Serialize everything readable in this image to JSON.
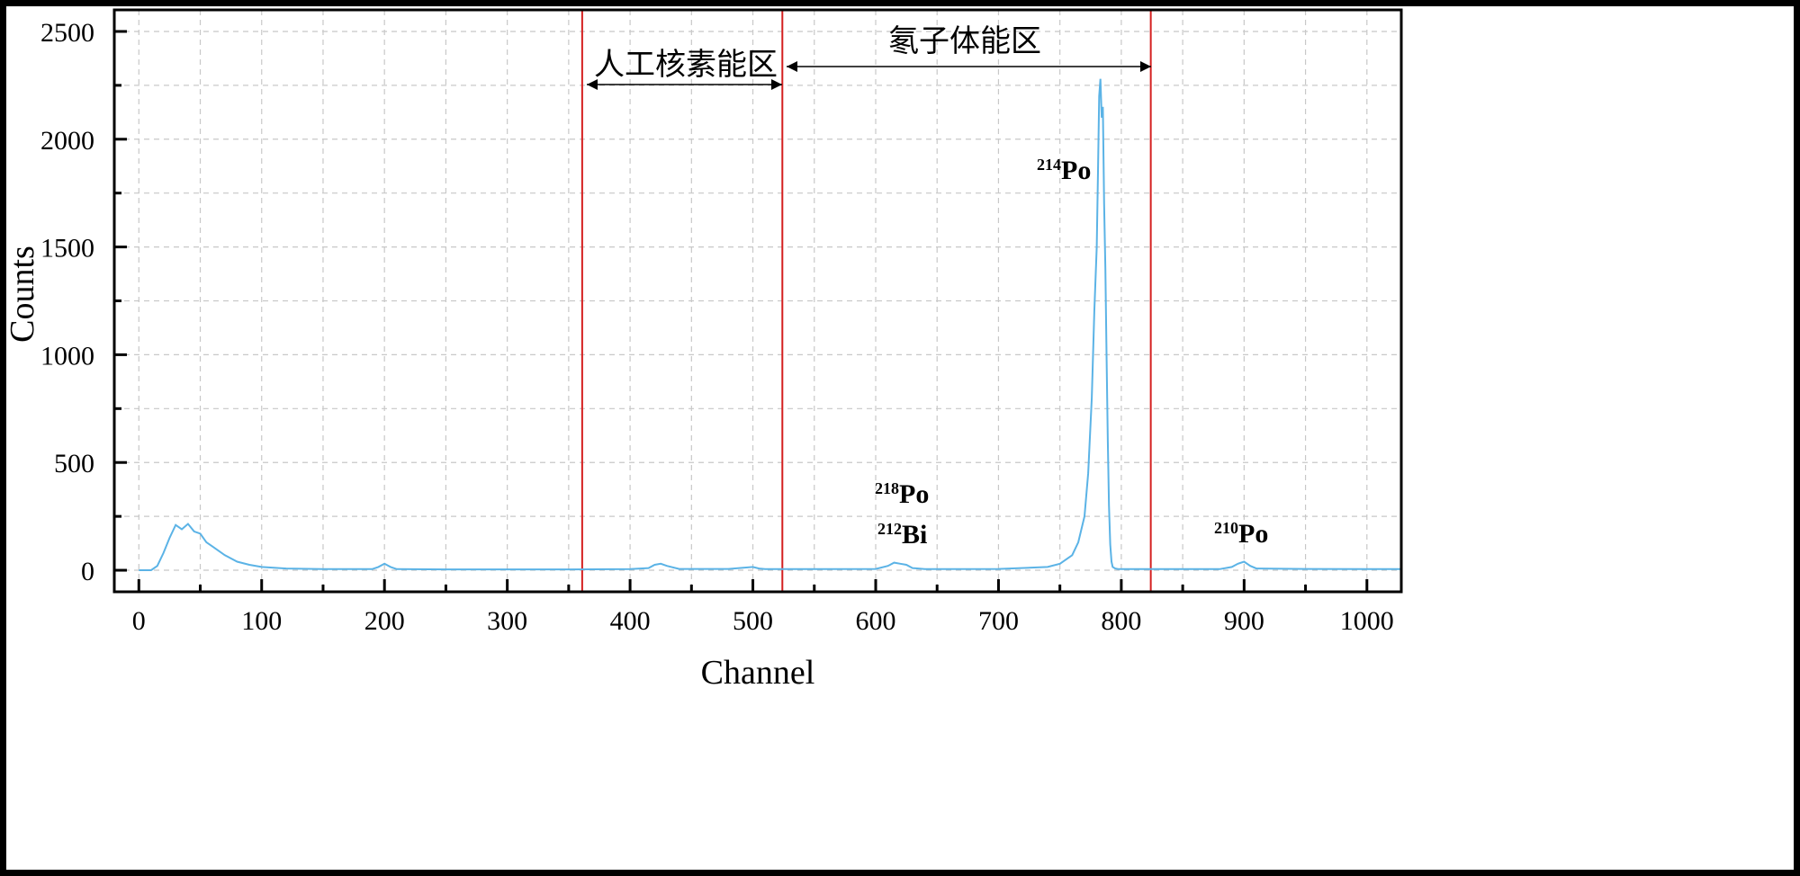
{
  "chart_data": {
    "type": "line",
    "xlabel": "Channel",
    "ylabel": "Counts",
    "xlim": [
      -20,
      1028
    ],
    "ylim": [
      -100,
      2600
    ],
    "xticks": [
      0,
      100,
      200,
      300,
      400,
      500,
      600,
      700,
      800,
      900,
      1000
    ],
    "yticks": [
      0,
      500,
      1000,
      1500,
      2000,
      2500
    ],
    "grid": true,
    "line_color": "#5bb3e6",
    "series": [
      {
        "x": [
          0,
          10,
          15,
          20,
          25,
          30,
          35,
          40,
          45,
          50,
          55,
          60,
          70,
          80,
          90,
          100,
          120,
          150,
          190,
          195,
          200,
          205,
          210,
          250,
          300,
          350,
          400,
          415,
          420,
          425,
          430,
          440,
          480,
          500,
          505,
          510,
          550,
          600,
          610,
          615,
          620,
          625,
          630,
          640,
          700,
          740,
          750,
          760,
          765,
          770,
          773,
          776,
          778,
          780,
          781,
          782,
          783,
          784,
          785,
          786,
          787,
          788,
          789,
          790,
          791,
          792,
          793,
          795,
          797,
          800,
          820,
          880,
          890,
          895,
          900,
          905,
          910,
          950,
          1000,
          1028
        ],
        "y": [
          0,
          0,
          20,
          80,
          150,
          210,
          190,
          215,
          180,
          170,
          130,
          110,
          70,
          40,
          25,
          15,
          8,
          5,
          5,
          15,
          30,
          15,
          5,
          4,
          4,
          4,
          5,
          10,
          25,
          30,
          20,
          6,
          6,
          15,
          8,
          5,
          5,
          6,
          20,
          35,
          30,
          25,
          10,
          5,
          6,
          15,
          30,
          70,
          130,
          250,
          450,
          800,
          1200,
          1500,
          1850,
          2200,
          2280,
          2100,
          2150,
          1700,
          1400,
          1000,
          600,
          300,
          120,
          40,
          15,
          8,
          6,
          5,
          5,
          5,
          15,
          30,
          40,
          20,
          8,
          6,
          5,
          5
        ]
      }
    ],
    "vlines": {
      "x": [
        361,
        524,
        824
      ],
      "color": "#d42020"
    },
    "annotations": {
      "region_artificial": "人工核素能区",
      "region_radon": "氡子体能区",
      "peaks": [
        {
          "mass": "214",
          "element": "Po"
        },
        {
          "mass": "218",
          "element": "Po"
        },
        {
          "mass": "212",
          "element": "Bi"
        },
        {
          "mass": "210",
          "element": "Po"
        }
      ]
    }
  }
}
